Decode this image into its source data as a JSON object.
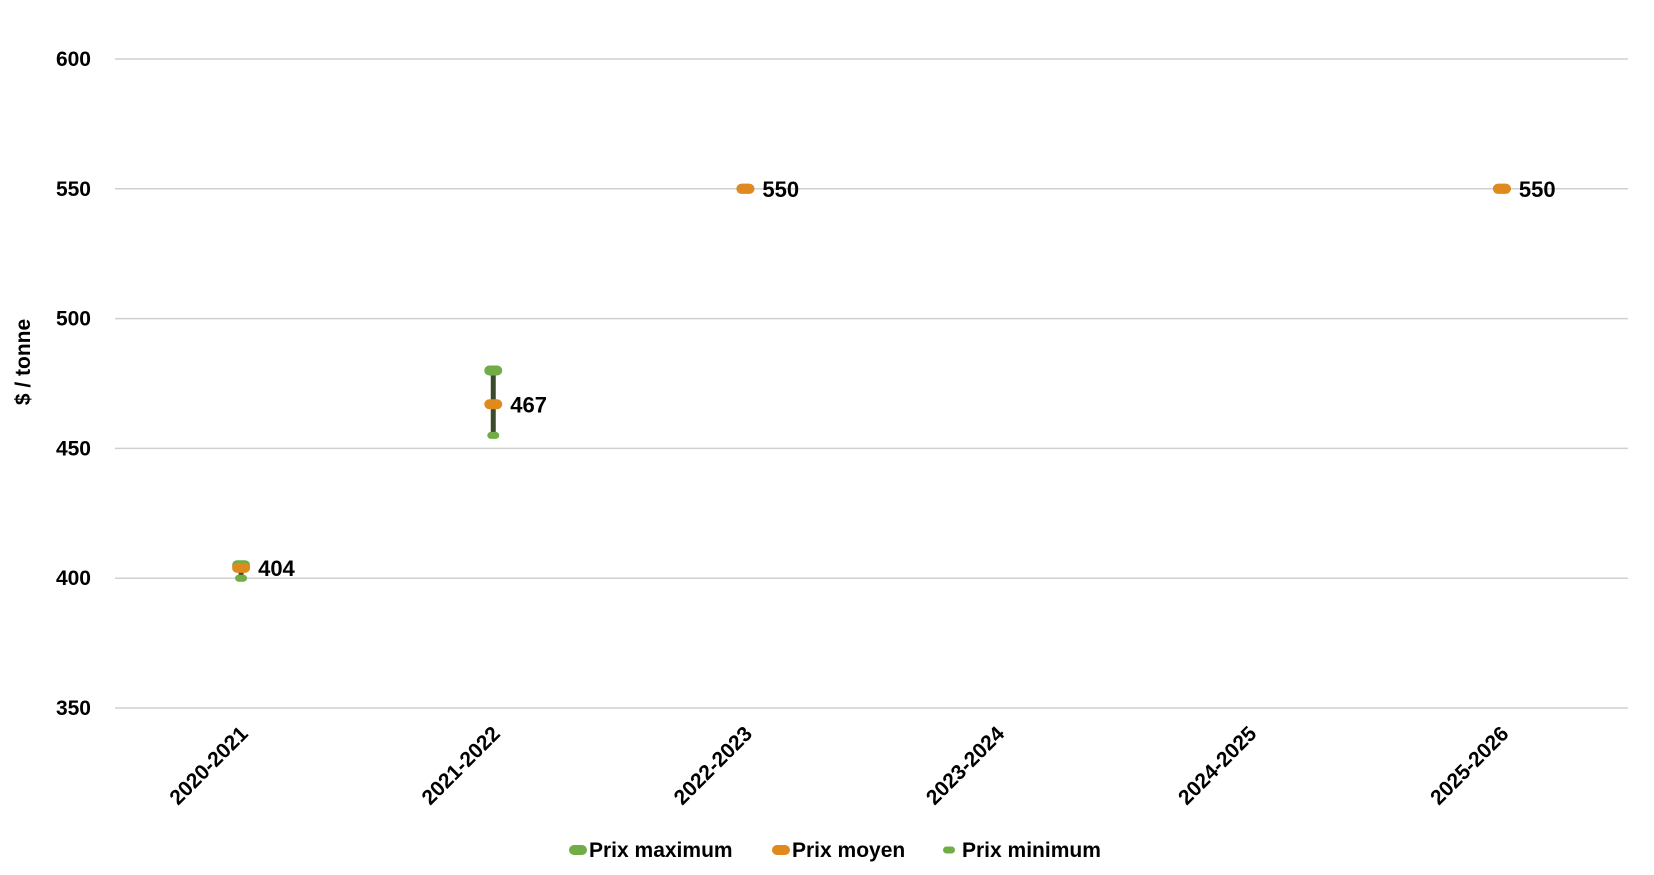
{
  "chart_data": {
    "type": "scatter",
    "title": "",
    "xlabel": "",
    "ylabel": "$ / tonne",
    "ylim": [
      350,
      600
    ],
    "yticks": [
      350,
      400,
      450,
      500,
      550,
      600
    ],
    "categories": [
      "2020-2021",
      "2021-2022",
      "2022-2023",
      "2023-2024",
      "2024-2025",
      "2025-2026"
    ],
    "grid": true,
    "legend_position": "bottom",
    "series": [
      {
        "name": "Prix maximum",
        "color": "#70ad47",
        "values": [
          405,
          480,
          550,
          null,
          null,
          550
        ]
      },
      {
        "name": "Prix moyen",
        "color": "#e08a1e",
        "values": [
          404,
          467,
          550,
          null,
          null,
          550
        ]
      },
      {
        "name": "Prix minimum",
        "color": "#70ad47",
        "values": [
          400,
          455,
          550,
          null,
          null,
          550
        ]
      }
    ],
    "range_bar_color": "#3a4a2a",
    "data_labels": [
      "404",
      "467",
      "550",
      null,
      null,
      "550"
    ]
  }
}
